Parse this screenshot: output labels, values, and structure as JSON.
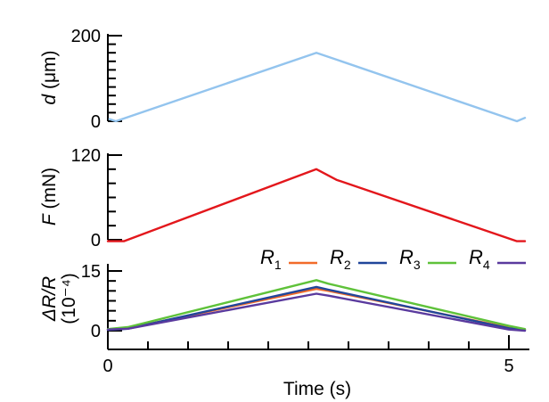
{
  "chart_data": {
    "type": "line",
    "x_axis": {
      "label": "Time (s)",
      "range": [
        0,
        5.2
      ],
      "ticks": [
        0,
        5
      ],
      "tick_labels": [
        "0",
        "5"
      ]
    },
    "panels": [
      {
        "id": "displacement",
        "ylabel_symbol": "d",
        "ylabel_unit": " (μm)",
        "ylim": [
          0,
          200
        ],
        "yticks": [
          0,
          200
        ],
        "ytick_labels": [
          "0",
          "200"
        ],
        "series": [
          {
            "color": "#93c4ee",
            "points": [
              [
                0.02,
                5
              ],
              [
                0.1,
                0
              ],
              [
                2.6,
                160
              ],
              [
                5.1,
                0
              ],
              [
                5.2,
                8
              ]
            ]
          }
        ]
      },
      {
        "id": "force",
        "ylabel_symbol": "F",
        "ylabel_unit": " (mN)",
        "ylim": [
          0,
          120
        ],
        "yticks": [
          0,
          120
        ],
        "ytick_labels": [
          "0",
          "120"
        ],
        "series": [
          {
            "color": "#e3171c",
            "points": [
              [
                0,
                -2
              ],
              [
                0.2,
                -2
              ],
              [
                2.6,
                100
              ],
              [
                2.85,
                85
              ],
              [
                5.1,
                -2
              ],
              [
                5.2,
                -2
              ]
            ]
          }
        ]
      },
      {
        "id": "resistance",
        "ylabel_main": "ΔR/R",
        "ylabel_sub": "(10⁻⁴)",
        "ylim": [
          0,
          15
        ],
        "yticks": [
          0,
          15
        ],
        "ytick_labels": [
          "0",
          "15"
        ],
        "legend_position": "top-right",
        "series": [
          {
            "name_base": "R",
            "name_sub": "1",
            "color": "#f26b2a",
            "points": [
              [
                0,
                0.3
              ],
              [
                0.25,
                0.6
              ],
              [
                2.6,
                10.5
              ],
              [
                2.75,
                10
              ],
              [
                5.0,
                0.8
              ],
              [
                5.2,
                0.2
              ]
            ]
          },
          {
            "name_base": "R",
            "name_sub": "2",
            "color": "#20469a",
            "points": [
              [
                0,
                0.2
              ],
              [
                0.25,
                0.5
              ],
              [
                2.6,
                11
              ],
              [
                2.75,
                10.3
              ],
              [
                5.0,
                0.6
              ],
              [
                5.2,
                0.2
              ]
            ]
          },
          {
            "name_base": "R",
            "name_sub": "3",
            "color": "#5fc23a",
            "points": [
              [
                0,
                0.4
              ],
              [
                0.25,
                0.9
              ],
              [
                2.6,
                12.7
              ],
              [
                2.75,
                11.8
              ],
              [
                5.0,
                1.2
              ],
              [
                5.2,
                0.4
              ]
            ]
          },
          {
            "name_base": "R",
            "name_sub": "4",
            "color": "#5a3a9e",
            "points": [
              [
                0,
                0.3
              ],
              [
                0.25,
                0.5
              ],
              [
                2.6,
                9.3
              ],
              [
                2.75,
                8.8
              ],
              [
                5.0,
                0.3
              ],
              [
                5.2,
                0
              ]
            ]
          }
        ]
      }
    ]
  }
}
